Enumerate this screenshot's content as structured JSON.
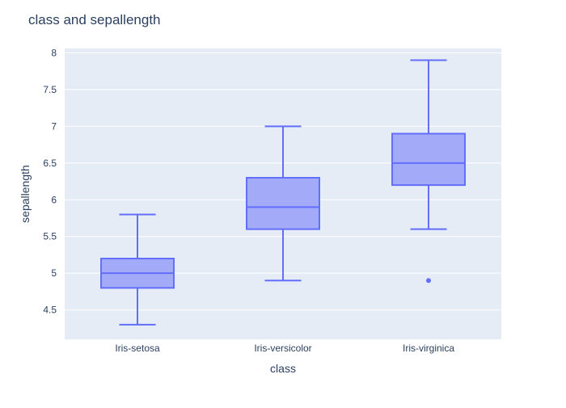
{
  "chart_data": {
    "type": "box",
    "title": "class and sepallength",
    "xlabel": "class",
    "ylabel": "sepallength",
    "ylim": [
      4.1,
      8.06
    ],
    "yticks": [
      4.5,
      5,
      5.5,
      6,
      6.5,
      7,
      7.5,
      8
    ],
    "ytick_labels": [
      "4.5",
      "5",
      "5.5",
      "6",
      "6.5",
      "7",
      "7.5",
      "8"
    ],
    "categories": [
      "Iris-setosa",
      "Iris-versicolor",
      "Iris-virginica"
    ],
    "boxes": [
      {
        "category": "Iris-setosa",
        "min": 4.3,
        "q1": 4.8,
        "median": 5.0,
        "q3": 5.2,
        "max": 5.8,
        "outliers": []
      },
      {
        "category": "Iris-versicolor",
        "min": 4.9,
        "q1": 5.6,
        "median": 5.9,
        "q3": 6.3,
        "max": 7.0,
        "outliers": []
      },
      {
        "category": "Iris-virginica",
        "min": 5.6,
        "q1": 6.2,
        "median": 6.5,
        "q3": 6.9,
        "max": 7.9,
        "outliers": [
          4.9
        ]
      }
    ],
    "grid": true,
    "colors": {
      "box_fill": "#a3abf8",
      "box_line": "#636efa",
      "plot_bg": "#e5ecf6",
      "grid": "#ffffff",
      "text": "#2a3f5f"
    }
  }
}
